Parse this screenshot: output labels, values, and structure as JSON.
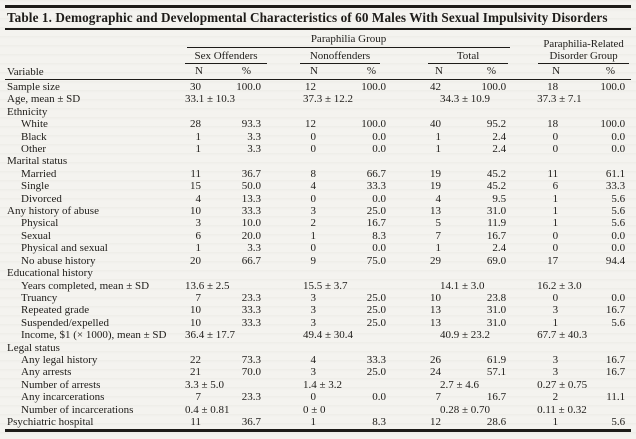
{
  "page": {
    "colors": {
      "ink": "#1e1c19",
      "paper": "#f4f3ef"
    }
  },
  "table": {
    "title": "Table 1. Demographic and Developmental Characteristics of 60 Males With Sexual Impulsivity Disorders",
    "variable_header": "Variable",
    "group_header": "Paraphilia Group",
    "related_group_header_line1": "Paraphilia-Related",
    "related_group_header_line2": "Disorder Group",
    "sub_groups": [
      "Sex Offenders",
      "Nonoffenders",
      "Total"
    ],
    "n_label": "N",
    "pct_label": "%",
    "rows": [
      {
        "label": "Sample size",
        "indent": false,
        "type": "counts",
        "values": [
          "30",
          "100.0",
          "12",
          "100.0",
          "42",
          "100.0",
          "18",
          "100.0"
        ]
      },
      {
        "label": "Age, mean ± SD",
        "indent": false,
        "type": "means",
        "values": [
          "33.1 ± 10.3",
          "37.3 ± 12.2",
          "34.3 ± 10.9",
          "37.3 ± 7.1"
        ]
      },
      {
        "label": "Ethnicity",
        "indent": false,
        "type": "section",
        "values": []
      },
      {
        "label": "White",
        "indent": true,
        "type": "counts",
        "values": [
          "28",
          "93.3",
          "12",
          "100.0",
          "40",
          "95.2",
          "18",
          "100.0"
        ]
      },
      {
        "label": "Black",
        "indent": true,
        "type": "counts",
        "values": [
          "1",
          "3.3",
          "0",
          "0.0",
          "1",
          "2.4",
          "0",
          "0.0"
        ]
      },
      {
        "label": "Other",
        "indent": true,
        "type": "counts",
        "values": [
          "1",
          "3.3",
          "0",
          "0.0",
          "1",
          "2.4",
          "0",
          "0.0"
        ]
      },
      {
        "label": "Marital status",
        "indent": false,
        "type": "section",
        "values": []
      },
      {
        "label": "Married",
        "indent": true,
        "type": "counts",
        "values": [
          "11",
          "36.7",
          "8",
          "66.7",
          "19",
          "45.2",
          "11",
          "61.1"
        ]
      },
      {
        "label": "Single",
        "indent": true,
        "type": "counts",
        "values": [
          "15",
          "50.0",
          "4",
          "33.3",
          "19",
          "45.2",
          "6",
          "33.3"
        ]
      },
      {
        "label": "Divorced",
        "indent": true,
        "type": "counts",
        "values": [
          "4",
          "13.3",
          "0",
          "0.0",
          "4",
          "9.5",
          "1",
          "5.6"
        ]
      },
      {
        "label": "Any history of abuse",
        "indent": false,
        "type": "counts",
        "values": [
          "10",
          "33.3",
          "3",
          "25.0",
          "13",
          "31.0",
          "1",
          "5.6"
        ]
      },
      {
        "label": "Physical",
        "indent": true,
        "type": "counts",
        "values": [
          "3",
          "10.0",
          "2",
          "16.7",
          "5",
          "11.9",
          "1",
          "5.6"
        ]
      },
      {
        "label": "Sexual",
        "indent": true,
        "type": "counts",
        "values": [
          "6",
          "20.0",
          "1",
          "8.3",
          "7",
          "16.7",
          "0",
          "0.0"
        ]
      },
      {
        "label": "Physical and sexual",
        "indent": true,
        "type": "counts",
        "values": [
          "1",
          "3.3",
          "0",
          "0.0",
          "1",
          "2.4",
          "0",
          "0.0"
        ]
      },
      {
        "label": "No abuse history",
        "indent": true,
        "type": "counts",
        "values": [
          "20",
          "66.7",
          "9",
          "75.0",
          "29",
          "69.0",
          "17",
          "94.4"
        ]
      },
      {
        "label": "Educational history",
        "indent": false,
        "type": "section",
        "values": []
      },
      {
        "label": "Years completed, mean ± SD",
        "indent": true,
        "type": "means",
        "values": [
          "13.6 ± 2.5",
          "15.5 ± 3.7",
          "14.1 ± 3.0",
          "16.2 ± 3.0"
        ]
      },
      {
        "label": "Truancy",
        "indent": true,
        "type": "counts",
        "values": [
          "7",
          "23.3",
          "3",
          "25.0",
          "10",
          "23.8",
          "0",
          "0.0"
        ]
      },
      {
        "label": "Repeated grade",
        "indent": true,
        "type": "counts",
        "values": [
          "10",
          "33.3",
          "3",
          "25.0",
          "13",
          "31.0",
          "3",
          "16.7"
        ]
      },
      {
        "label": "Suspended/expelled",
        "indent": true,
        "type": "counts",
        "values": [
          "10",
          "33.3",
          "3",
          "25.0",
          "13",
          "31.0",
          "1",
          "5.6"
        ]
      },
      {
        "label": "Income, $1 (× 1000), mean ± SD",
        "indent": true,
        "type": "means",
        "values": [
          "36.4 ± 17.7",
          "49.4 ± 30.4",
          "40.9 ± 23.2",
          "67.7 ± 40.3"
        ]
      },
      {
        "label": "Legal status",
        "indent": false,
        "type": "section",
        "values": []
      },
      {
        "label": "Any legal history",
        "indent": true,
        "type": "counts",
        "values": [
          "22",
          "73.3",
          "4",
          "33.3",
          "26",
          "61.9",
          "3",
          "16.7"
        ]
      },
      {
        "label": "Any arrests",
        "indent": true,
        "type": "counts",
        "values": [
          "21",
          "70.0",
          "3",
          "25.0",
          "24",
          "57.1",
          "3",
          "16.7"
        ]
      },
      {
        "label": "Number of arrests",
        "indent": true,
        "type": "means",
        "values": [
          "3.3 ± 5.0",
          "1.4 ± 3.2",
          "2.7 ± 4.6",
          "0.27 ± 0.75"
        ]
      },
      {
        "label": "Any incarcerations",
        "indent": true,
        "type": "counts",
        "values": [
          "7",
          "23.3",
          "0",
          "0.0",
          "7",
          "16.7",
          "2",
          "11.1"
        ]
      },
      {
        "label": "Number of incarcerations",
        "indent": true,
        "type": "means",
        "values": [
          "0.4 ± 0.81",
          "0 ± 0",
          "0.28 ± 0.70",
          "0.11 ± 0.32"
        ]
      },
      {
        "label": "Psychiatric hospital",
        "indent": false,
        "type": "counts",
        "values": [
          "11",
          "36.7",
          "1",
          "8.3",
          "12",
          "28.6",
          "1",
          "5.6"
        ]
      }
    ]
  }
}
